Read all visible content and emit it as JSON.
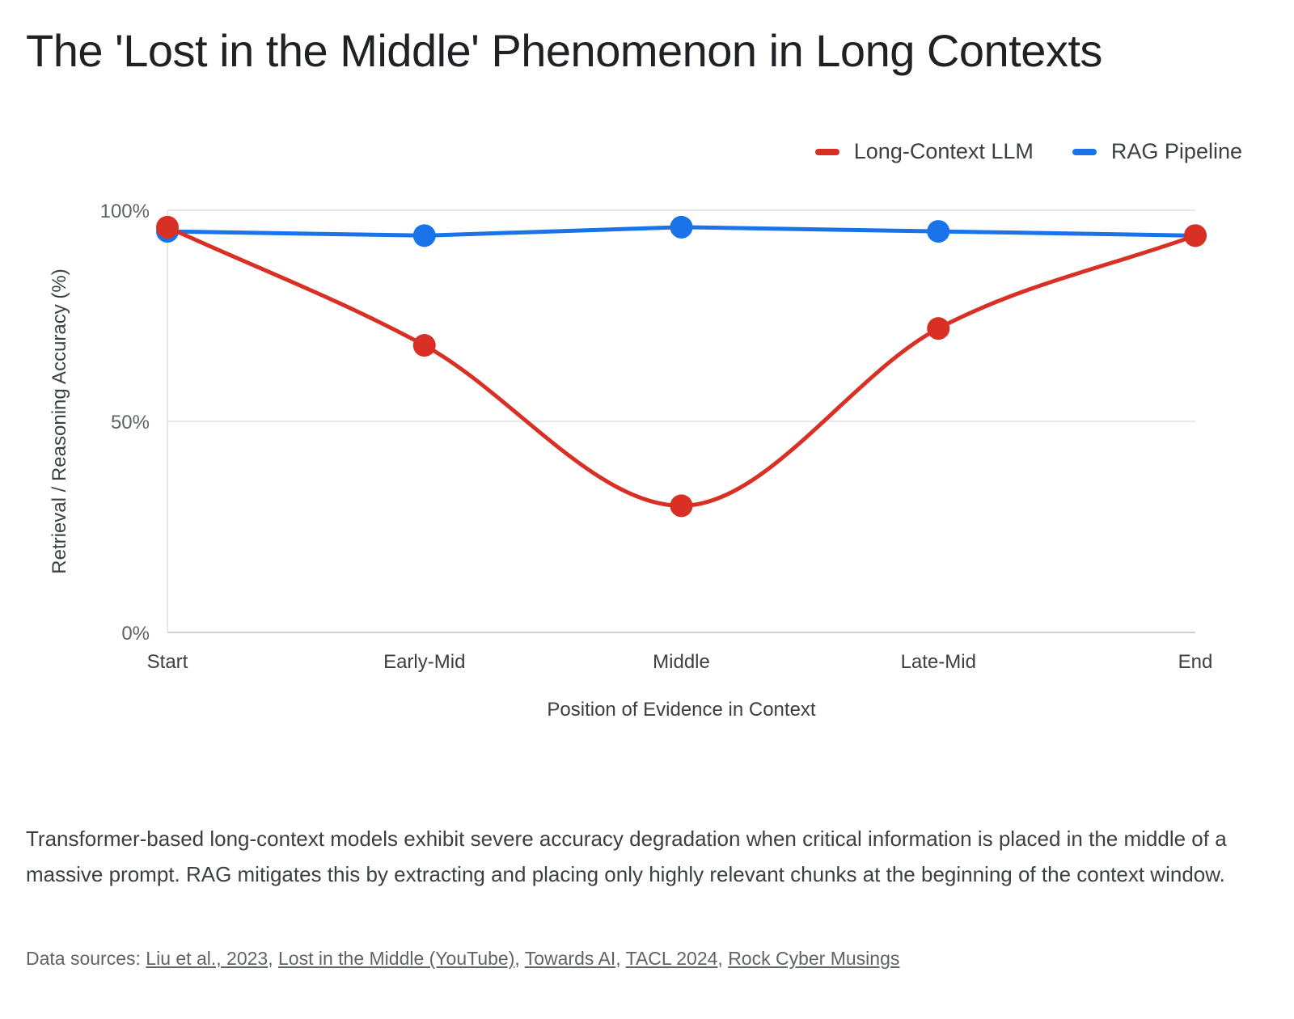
{
  "title": "The 'Lost in the Middle' Phenomenon in Long Contexts",
  "caption": "Transformer-based long-context models exhibit severe accuracy degradation when critical information is placed in the middle of a massive prompt. RAG mitigates this by extracting and placing only highly relevant chunks at the beginning of the context window.",
  "sources": {
    "label": "Data sources:",
    "links": [
      "Liu et al., 2023",
      "Lost in the Middle (YouTube)",
      "Towards AI",
      "TACL 2024",
      "Rock Cyber Musings"
    ]
  },
  "chart_data": {
    "type": "line",
    "categories": [
      "Start",
      "Early-Mid",
      "Middle",
      "Late-Mid",
      "End"
    ],
    "series": [
      {
        "name": "Long-Context LLM",
        "color": "#d93025",
        "values": [
          96,
          68,
          30,
          72,
          94
        ],
        "smooth": true
      },
      {
        "name": "RAG Pipeline",
        "color": "#1a73e8",
        "values": [
          95,
          94,
          96,
          95,
          94
        ],
        "smooth": false
      }
    ],
    "xlabel": "Position of Evidence in Context",
    "ylabel": "Retrieval / Reasoning Accuracy (%)",
    "ylim": [
      0,
      100
    ],
    "yticks": [
      0,
      50,
      100
    ],
    "ytick_labels": [
      "0%",
      "50%",
      "100%"
    ],
    "grid": true,
    "legend": "top-right"
  }
}
